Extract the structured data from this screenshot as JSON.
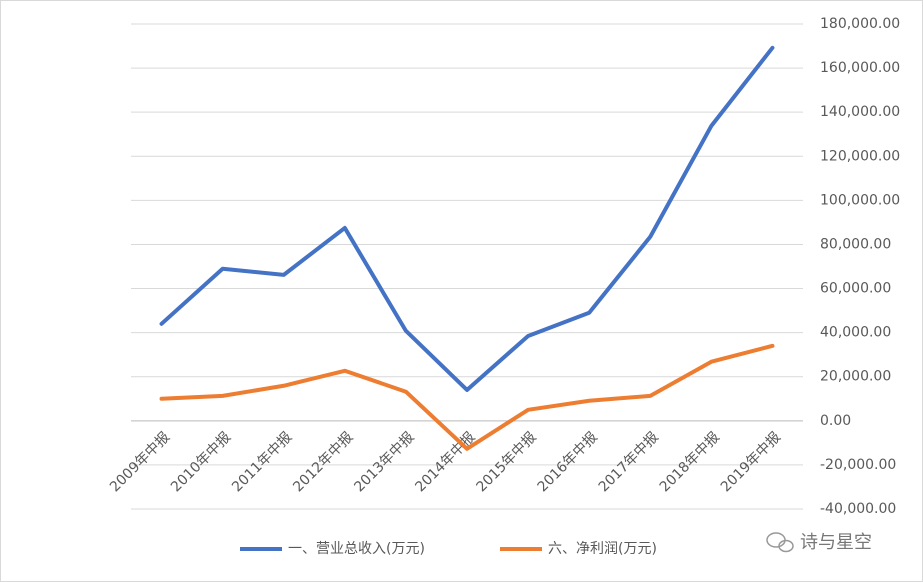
{
  "chart_data": {
    "type": "line",
    "categories": [
      "2009年中报",
      "2010年中报",
      "2011年中报",
      "2012年中报",
      "2013年中报",
      "2014年中报",
      "2015年中报",
      "2016年中报",
      "2017年中报",
      "2018年中报",
      "2019年中报"
    ],
    "series": [
      {
        "name": "一、营业总收入(万元)",
        "color": "#4472c4",
        "values": [
          44000,
          69000,
          66200,
          87500,
          40800,
          14000,
          38500,
          49000,
          83500,
          133800,
          169200
        ]
      },
      {
        "name": "六、净利润(万元)",
        "color": "#ed7d31",
        "values": [
          10000,
          11300,
          15900,
          22700,
          13200,
          -12700,
          5000,
          9100,
          11300,
          26800,
          34000
        ]
      }
    ],
    "ylim": [
      -40000,
      180000
    ],
    "yticks": [
      {
        "value": -40000,
        "label": "-40,000.00"
      },
      {
        "value": -20000,
        "label": "-20,000.00"
      },
      {
        "value": 0,
        "label": "0.00"
      },
      {
        "value": 20000,
        "label": "20,000.00"
      },
      {
        "value": 40000,
        "label": "40,000.00"
      },
      {
        "value": 60000,
        "label": "60,000.00"
      },
      {
        "value": 80000,
        "label": "80,000.00"
      },
      {
        "value": 100000,
        "label": "100,000.00"
      },
      {
        "value": 120000,
        "label": "120,000.00"
      },
      {
        "value": 140000,
        "label": "140,000.00"
      },
      {
        "value": 160000,
        "label": "160,000.00"
      },
      {
        "value": 180000,
        "label": "180,000.00"
      }
    ],
    "grid": true,
    "legend": "bottom",
    "watermark": "诗与星空"
  }
}
